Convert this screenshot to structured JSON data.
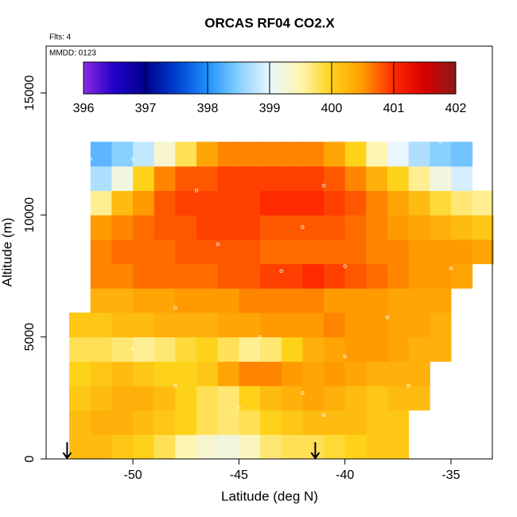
{
  "chart_data": {
    "type": "heatmap",
    "title": "ORCAS RF04 CO2.X",
    "annotations": [
      "Flts: 4",
      "MMDD: 0123"
    ],
    "x_label": "Latitude (deg N)",
    "y_label": "Altitude (m)",
    "xlim": [
      -54.09,
      -33.05
    ],
    "ylim": [
      0,
      16920
    ],
    "xticks": [
      -50,
      -45,
      -40,
      -35
    ],
    "yticks": [
      0,
      5000,
      10000,
      15000
    ],
    "xbins": [
      -54,
      -53,
      -52,
      -51,
      -50,
      -49,
      -48,
      -47,
      -46,
      -45,
      -44,
      -43,
      -42,
      -41,
      -40,
      -39,
      -38,
      -37,
      -36,
      -35,
      -34,
      -33
    ],
    "ybins": [
      0,
      1000,
      2000,
      3000,
      4000,
      5000,
      6000,
      7000,
      8000,
      9000,
      10000,
      11000,
      12000,
      13000
    ],
    "z": [
      [
        null,
        400.2,
        400.2,
        400.1,
        400.0,
        399.8,
        399.5,
        399.3,
        399.2,
        399.4,
        399.7,
        399.8,
        399.8,
        399.9,
        400.0,
        400.1,
        400.1,
        null,
        null,
        null,
        null
      ],
      [
        null,
        400.2,
        400.3,
        400.3,
        400.2,
        400.1,
        400.0,
        399.8,
        399.7,
        399.8,
        400.0,
        400.1,
        400.2,
        400.2,
        400.2,
        400.1,
        400.1,
        null,
        null,
        null,
        null
      ],
      [
        null,
        400.1,
        400.2,
        400.3,
        400.3,
        400.2,
        400.0,
        399.8,
        399.7,
        400.0,
        400.2,
        400.3,
        400.4,
        400.3,
        400.2,
        400.1,
        400.2,
        400.2,
        null,
        null,
        null
      ],
      [
        null,
        400.0,
        400.1,
        400.2,
        400.1,
        400.0,
        400.0,
        400.1,
        400.4,
        400.6,
        400.6,
        400.5,
        400.4,
        400.5,
        400.4,
        400.3,
        400.3,
        400.3,
        null,
        null,
        null
      ],
      [
        null,
        399.8,
        399.8,
        399.7,
        399.6,
        399.7,
        399.9,
        400.0,
        399.8,
        399.6,
        399.7,
        400.0,
        400.3,
        400.4,
        400.5,
        400.5,
        400.4,
        400.3,
        400.3,
        null,
        null
      ],
      [
        null,
        400.1,
        400.1,
        400.2,
        400.2,
        400.3,
        400.3,
        400.3,
        400.4,
        400.4,
        400.5,
        400.5,
        400.5,
        400.6,
        400.5,
        400.5,
        400.4,
        400.4,
        400.3,
        null,
        null
      ],
      [
        null,
        null,
        400.3,
        400.3,
        400.4,
        400.4,
        400.5,
        400.5,
        400.5,
        400.6,
        400.6,
        400.6,
        400.6,
        400.5,
        400.5,
        400.5,
        400.4,
        400.4,
        400.4,
        null,
        null
      ],
      [
        null,
        null,
        400.6,
        400.6,
        400.7,
        400.7,
        400.7,
        400.7,
        400.8,
        400.8,
        400.9,
        400.9,
        401.0,
        400.9,
        400.8,
        400.7,
        400.6,
        400.5,
        400.5,
        400.4,
        null
      ],
      [
        null,
        null,
        400.6,
        400.7,
        400.7,
        400.7,
        400.8,
        400.8,
        400.8,
        400.8,
        400.7,
        400.7,
        400.7,
        400.7,
        400.7,
        400.6,
        400.6,
        400.5,
        400.5,
        400.5,
        400.4
      ],
      [
        null,
        null,
        400.5,
        400.6,
        400.7,
        400.8,
        400.8,
        400.9,
        400.9,
        400.9,
        400.8,
        400.8,
        400.8,
        400.8,
        400.7,
        400.6,
        400.5,
        400.4,
        400.3,
        400.2,
        400.1
      ],
      [
        null,
        null,
        399.6,
        400.2,
        400.5,
        400.8,
        400.9,
        400.9,
        400.9,
        400.9,
        401.0,
        401.0,
        401.0,
        400.9,
        400.8,
        400.6,
        400.4,
        400.2,
        399.9,
        399.7,
        399.6
      ],
      [
        null,
        null,
        398.7,
        399.2,
        400.0,
        400.6,
        400.8,
        400.8,
        400.9,
        400.9,
        400.9,
        400.9,
        400.9,
        400.8,
        400.6,
        400.3,
        400.0,
        399.6,
        399.2,
        398.9,
        null
      ],
      [
        null,
        null,
        398.3,
        398.5,
        398.8,
        399.3,
        399.8,
        400.4,
        400.6,
        400.6,
        400.6,
        400.6,
        400.6,
        400.4,
        400.0,
        399.5,
        399.0,
        398.7,
        398.5,
        398.4,
        null
      ]
    ],
    "samples": {
      "x": [
        -52,
        -50,
        -38,
        -35.5,
        -41,
        -47,
        -52.2,
        -42,
        -46,
        -40,
        -43,
        -35,
        -48,
        -38,
        -44,
        -40,
        -48,
        -42,
        -37,
        -45,
        -50,
        -41
      ],
      "y": [
        12300,
        12300,
        13000,
        13000,
        11200,
        11000,
        10000,
        9500,
        8800,
        7900,
        7700,
        7800,
        6200,
        5800,
        5000,
        4200,
        3000,
        2700,
        3000,
        2100,
        4500,
        1800
      ]
    },
    "arrows": [
      -53.1,
      -41.4
    ],
    "colorbar": {
      "lim": [
        396,
        402
      ],
      "ticks": [
        396,
        397,
        398,
        399,
        400,
        401,
        402
      ],
      "colors": [
        "#8a2be2",
        "#2000c8",
        "#00008b",
        "#0040d0",
        "#1e90ff",
        "#87d0ff",
        "#e8f6ff",
        "#fff5b0",
        "#ffd21a",
        "#ff9a00",
        "#ff2a00",
        "#d60000",
        "#8b1a1a"
      ]
    }
  }
}
